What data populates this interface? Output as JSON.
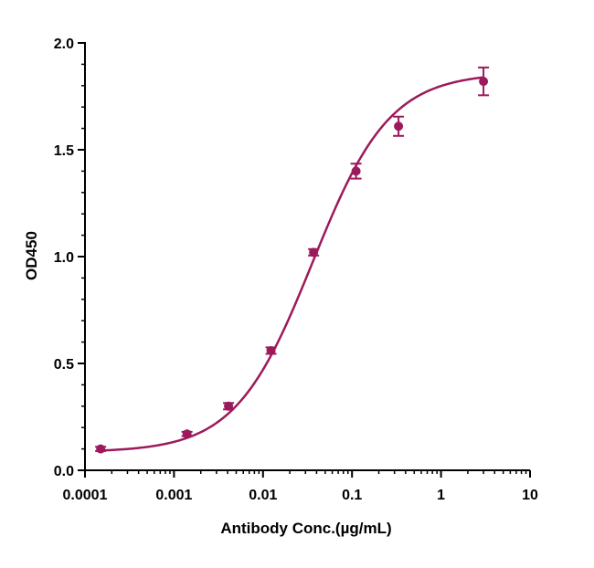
{
  "chart_data": {
    "type": "scatter",
    "title": "",
    "xlabel": "Antibody Conc.(µg/mL)",
    "ylabel": "OD450",
    "x_scale": "log",
    "xlim": [
      0.0001,
      10
    ],
    "ylim": [
      0,
      2.0
    ],
    "x_ticks": [
      {
        "value": 0.0001,
        "label": "0.0001"
      },
      {
        "value": 0.001,
        "label": "0.001"
      },
      {
        "value": 0.01,
        "label": "0.01"
      },
      {
        "value": 0.1,
        "label": "0.1"
      },
      {
        "value": 1,
        "label": "1"
      },
      {
        "value": 10,
        "label": "10"
      }
    ],
    "y_ticks": [
      {
        "value": 0.0,
        "label": "0.0"
      },
      {
        "value": 0.5,
        "label": "0.5"
      },
      {
        "value": 1.0,
        "label": "1.0"
      },
      {
        "value": 1.5,
        "label": "1.5"
      },
      {
        "value": 2.0,
        "label": "2.0"
      }
    ],
    "grid": false,
    "legend": "none",
    "series": [
      {
        "color": "#9c1a5c",
        "fit": "four-parameter logistic",
        "x": [
          0.00015,
          0.0014,
          0.0041,
          0.0123,
          0.037,
          0.111,
          0.333,
          3.0
        ],
        "values": [
          0.1,
          0.17,
          0.3,
          0.56,
          1.02,
          1.4,
          1.61,
          1.82
        ],
        "error": [
          0.01,
          0.01,
          0.015,
          0.015,
          0.015,
          0.035,
          0.045,
          0.065
        ]
      }
    ]
  }
}
